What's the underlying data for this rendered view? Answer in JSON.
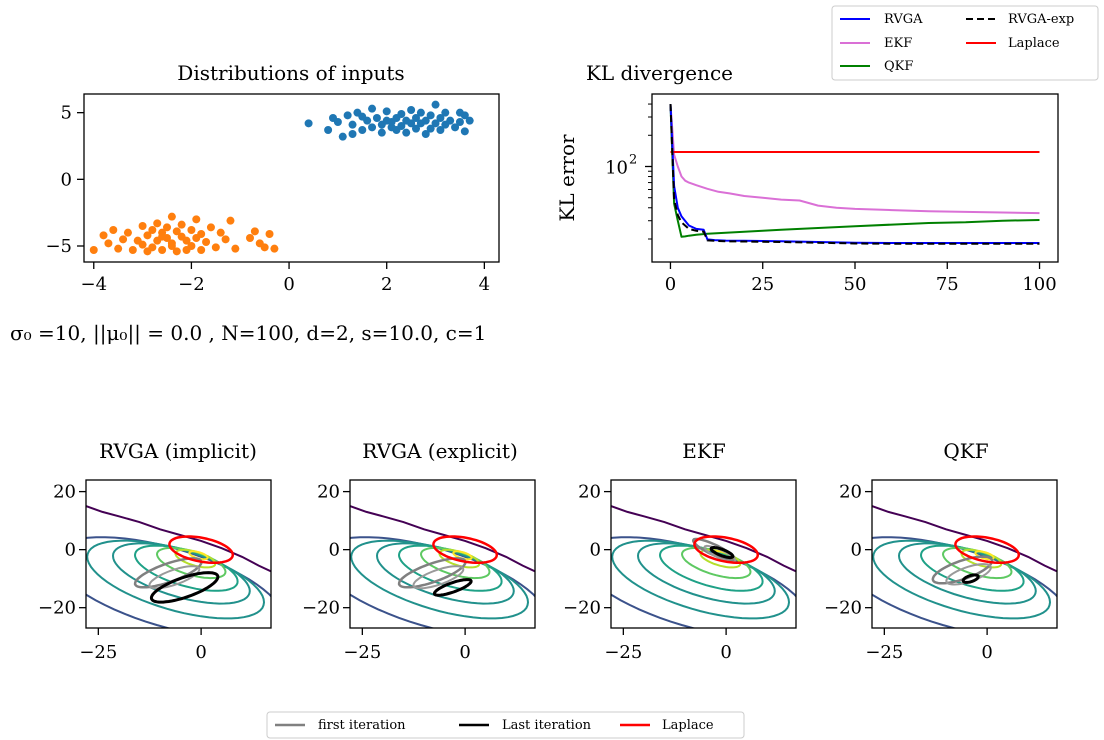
{
  "chart_data": [
    {
      "id": "inputs",
      "type": "scatter",
      "title": "Distributions of inputs",
      "caption": "σ₀ =10, ||μ₀|| = 0.0 , N=100, d=2, s=10.0, c=1",
      "xlim": [
        -4.2,
        4.3
      ],
      "ylim": [
        -6.2,
        6.4
      ],
      "xticks": [
        -4,
        -2,
        0,
        2,
        4
      ],
      "xtick_labels": [
        "−4",
        "−2",
        "0",
        "2",
        "4"
      ],
      "yticks": [
        -5,
        0,
        5
      ],
      "ytick_labels": [
        "−5",
        "0",
        "5"
      ],
      "series": [
        {
          "color": "#1f77b4",
          "points": [
            [
              0.4,
              4.2
            ],
            [
              0.8,
              3.7
            ],
            [
              0.9,
              4.6
            ],
            [
              1.0,
              4.3
            ],
            [
              1.1,
              3.2
            ],
            [
              1.2,
              4.8
            ],
            [
              1.3,
              3.4
            ],
            [
              1.3,
              4.1
            ],
            [
              1.4,
              5.0
            ],
            [
              1.5,
              3.7
            ],
            [
              1.6,
              4.4
            ],
            [
              1.7,
              3.9
            ],
            [
              1.7,
              5.3
            ],
            [
              1.8,
              4.6
            ],
            [
              1.9,
              3.5
            ],
            [
              1.9,
              4.1
            ],
            [
              2.0,
              4.4
            ],
            [
              2.0,
              5.1
            ],
            [
              2.1,
              3.9
            ],
            [
              2.1,
              4.3
            ],
            [
              2.2,
              4.6
            ],
            [
              2.2,
              3.7
            ],
            [
              2.3,
              4.9
            ],
            [
              2.3,
              4.0
            ],
            [
              2.4,
              4.4
            ],
            [
              2.4,
              3.5
            ],
            [
              2.5,
              5.2
            ],
            [
              2.5,
              4.2
            ],
            [
              2.6,
              4.6
            ],
            [
              2.6,
              3.8
            ],
            [
              2.7,
              4.2
            ],
            [
              2.7,
              5.0
            ],
            [
              2.8,
              3.4
            ],
            [
              2.8,
              4.4
            ],
            [
              2.9,
              4.8
            ],
            [
              2.9,
              3.8
            ],
            [
              3.0,
              5.6
            ],
            [
              3.0,
              4.2
            ],
            [
              3.1,
              4.6
            ],
            [
              3.1,
              3.7
            ],
            [
              3.2,
              5.0
            ],
            [
              3.2,
              4.1
            ],
            [
              3.3,
              4.4
            ],
            [
              3.4,
              3.9
            ],
            [
              3.5,
              5.0
            ],
            [
              3.5,
              4.3
            ],
            [
              3.6,
              3.6
            ],
            [
              3.6,
              4.8
            ],
            [
              3.7,
              4.4
            ],
            [
              1.5,
              4.7
            ]
          ]
        },
        {
          "color": "#ff7f0e",
          "points": [
            [
              -4.0,
              -5.3
            ],
            [
              -3.8,
              -4.2
            ],
            [
              -3.7,
              -4.8
            ],
            [
              -3.5,
              -5.2
            ],
            [
              -3.3,
              -4.0
            ],
            [
              -3.2,
              -5.3
            ],
            [
              -3.1,
              -4.6
            ],
            [
              -3.0,
              -3.5
            ],
            [
              -3.0,
              -4.9
            ],
            [
              -2.9,
              -4.2
            ],
            [
              -2.8,
              -5.1
            ],
            [
              -2.8,
              -3.8
            ],
            [
              -2.7,
              -4.6
            ],
            [
              -2.7,
              -3.3
            ],
            [
              -2.6,
              -5.3
            ],
            [
              -2.6,
              -4.0
            ],
            [
              -2.5,
              -4.4
            ],
            [
              -2.5,
              -3.6
            ],
            [
              -2.4,
              -2.8
            ],
            [
              -2.4,
              -4.8
            ],
            [
              -2.3,
              -3.9
            ],
            [
              -2.3,
              -5.4
            ],
            [
              -2.2,
              -4.3
            ],
            [
              -2.2,
              -3.4
            ],
            [
              -2.1,
              -4.6
            ],
            [
              -2.0,
              -5.0
            ],
            [
              -2.0,
              -3.8
            ],
            [
              -1.9,
              -4.4
            ],
            [
              -1.9,
              -3.0
            ],
            [
              -1.8,
              -5.3
            ],
            [
              -1.8,
              -4.1
            ],
            [
              -1.6,
              -3.6
            ],
            [
              -1.5,
              -5.1
            ],
            [
              -1.3,
              -4.5
            ],
            [
              -1.2,
              -3.1
            ],
            [
              -1.1,
              -5.2
            ],
            [
              -0.8,
              -4.4
            ],
            [
              -0.7,
              -3.9
            ],
            [
              -0.6,
              -4.8
            ],
            [
              -0.5,
              -5.1
            ],
            [
              -0.4,
              -4.1
            ],
            [
              -0.3,
              -5.2
            ],
            [
              -3.4,
              -4.5
            ],
            [
              -2.9,
              -5.4
            ],
            [
              -2.6,
              -4.3
            ],
            [
              -2.1,
              -5.3
            ],
            [
              -1.7,
              -4.7
            ],
            [
              -3.6,
              -3.8
            ],
            [
              -2.4,
              -5.0
            ],
            [
              -1.4,
              -4.0
            ]
          ]
        }
      ]
    },
    {
      "id": "kl",
      "type": "line",
      "title": "KL divergence",
      "ylabel": "KL error",
      "yscale": "log",
      "xlim": [
        -5,
        105
      ],
      "ylim": [
        12,
        500
      ],
      "xticks": [
        0,
        25,
        50,
        75,
        100
      ],
      "xtick_labels": [
        "0",
        "25",
        "50",
        "75",
        "100"
      ],
      "ytick_major": [
        {
          "v": 100,
          "base": "10",
          "exp": "2"
        }
      ],
      "legend": {
        "position": "upper-right",
        "entries": [
          "RVGA",
          "RVGA-exp",
          "EKF",
          "Laplace",
          "QKF"
        ]
      },
      "series": [
        {
          "name": "EKF",
          "color": "#da70d6",
          "dash": "",
          "width": 2,
          "x": [
            0,
            1,
            2,
            3,
            4,
            5,
            7,
            10,
            13,
            16,
            20,
            25,
            30,
            35,
            40,
            45,
            50,
            60,
            70,
            80,
            90,
            100
          ],
          "y": [
            400,
            130,
            100,
            80,
            73,
            70,
            66,
            61,
            57,
            55,
            52,
            50,
            48,
            47,
            42,
            40,
            39,
            38,
            37,
            36.5,
            36,
            35.5
          ]
        },
        {
          "name": "Laplace",
          "color": "#ff0000",
          "dash": "",
          "width": 2,
          "x": [
            0,
            100
          ],
          "y": [
            138,
            138
          ]
        },
        {
          "name": "QKF",
          "color": "#008000",
          "dash": "",
          "width": 2,
          "x": [
            0,
            1,
            2,
            3,
            4,
            5,
            7,
            10,
            15,
            20,
            25,
            30,
            40,
            50,
            60,
            70,
            80,
            90,
            100
          ],
          "y": [
            400,
            44,
            30,
            21,
            21.2,
            21.5,
            22,
            22.5,
            23,
            23.5,
            24,
            24.5,
            25.5,
            26.5,
            27.5,
            28.5,
            29,
            30,
            30.5
          ]
        },
        {
          "name": "RVGA",
          "color": "#0000ff",
          "dash": "",
          "width": 2,
          "x": [
            0,
            1,
            2,
            3,
            5,
            7,
            9,
            10,
            12,
            15,
            20,
            30,
            40,
            50,
            60,
            80,
            100
          ],
          "y": [
            400,
            65,
            40,
            33,
            27,
            25,
            24.5,
            19.8,
            19.5,
            19.3,
            19.2,
            19,
            18.7,
            18.4,
            18.3,
            18.3,
            18.3
          ]
        },
        {
          "name": "RVGA-exp",
          "color": "#000000",
          "dash": "7 4",
          "width": 2,
          "x": [
            0,
            1,
            2,
            3,
            5,
            7,
            9,
            10,
            12,
            15,
            20,
            30,
            40,
            50,
            60,
            80,
            100
          ],
          "y": [
            400,
            48,
            34,
            29,
            25,
            24,
            23.5,
            19.4,
            19.2,
            19,
            18.9,
            18.7,
            18.4,
            18.1,
            18,
            18,
            18
          ]
        }
      ]
    },
    {
      "id": "p1",
      "type": "contour",
      "title": "RVGA (implicit)",
      "xlim": [
        -28,
        17
      ],
      "ylim": [
        -27,
        24
      ],
      "xticks": [
        -25,
        0
      ],
      "xtick_labels": [
        "−25",
        "0"
      ],
      "yticks": [
        -20,
        0,
        20
      ],
      "ytick_labels": [
        "−20",
        "0",
        "20"
      ],
      "first": {
        "cx": -8,
        "cy": -8,
        "rx": 9,
        "ry": 3,
        "angle": 28
      },
      "last": {
        "cx": -4,
        "cy": -13,
        "rx": 9,
        "ry": 3.2,
        "angle": 28
      },
      "laplace": {
        "cx": 0,
        "cy": 0,
        "rx": 8,
        "ry": 4,
        "angle": -18
      }
    },
    {
      "id": "p2",
      "type": "contour",
      "title": "RVGA (explicit)",
      "xlim": [
        -28,
        17
      ],
      "ylim": [
        -27,
        24
      ],
      "xticks": [
        -25,
        0
      ],
      "xtick_labels": [
        "−25",
        "0"
      ],
      "yticks": [
        -20,
        0,
        20
      ],
      "ytick_labels": [
        "−20",
        "0",
        "20"
      ],
      "first": {
        "cx": -8,
        "cy": -8,
        "rx": 9,
        "ry": 3,
        "angle": 28
      },
      "last": {
        "cx": -3,
        "cy": -13,
        "rx": 5,
        "ry": 1.5,
        "angle": 28
      },
      "laplace": {
        "cx": 0,
        "cy": 0,
        "rx": 8,
        "ry": 4,
        "angle": -18
      }
    },
    {
      "id": "p3",
      "type": "contour",
      "title": "EKF",
      "xlim": [
        -28,
        17
      ],
      "ylim": [
        -27,
        24
      ],
      "xticks": [
        -25,
        0
      ],
      "xtick_labels": [
        "−25",
        "0"
      ],
      "yticks": [
        -20,
        0,
        20
      ],
      "ytick_labels": [
        "−20",
        "0",
        "20"
      ],
      "first": {
        "cx": -3,
        "cy": 0,
        "rx": 6,
        "ry": 1.6,
        "angle": -35
      },
      "last": {
        "cx": -1,
        "cy": -1,
        "rx": 3,
        "ry": 1,
        "angle": -30
      },
      "laplace": {
        "cx": 0,
        "cy": 0,
        "rx": 8,
        "ry": 4,
        "angle": -18
      }
    },
    {
      "id": "p4",
      "type": "contour",
      "title": "QKF",
      "xlim": [
        -28,
        17
      ],
      "ylim": [
        -27,
        24
      ],
      "xticks": [
        -25,
        0
      ],
      "xtick_labels": [
        "−25",
        "0"
      ],
      "yticks": [
        -20,
        0,
        20
      ],
      "ytick_labels": [
        "−20",
        "0",
        "20"
      ],
      "first": {
        "cx": -6,
        "cy": -7,
        "rx": 8,
        "ry": 3,
        "angle": 28
      },
      "last": {
        "cx": -4,
        "cy": -10,
        "rx": 2,
        "ry": 1,
        "angle": 28
      },
      "laplace": {
        "cx": 0,
        "cy": 0,
        "rx": 8,
        "ry": 4,
        "angle": -18
      }
    }
  ],
  "contour_colors": [
    "#440154",
    "#3b528b",
    "#21918c",
    "#1fa187",
    "#5ec962",
    "#b5de2b",
    "#fde725"
  ],
  "bottom_legend": {
    "entries": [
      {
        "label": "first iteration",
        "color": "#808080"
      },
      {
        "label": "Last iteration",
        "color": "#000000"
      },
      {
        "label": "Laplace",
        "color": "#ff0000"
      }
    ]
  }
}
